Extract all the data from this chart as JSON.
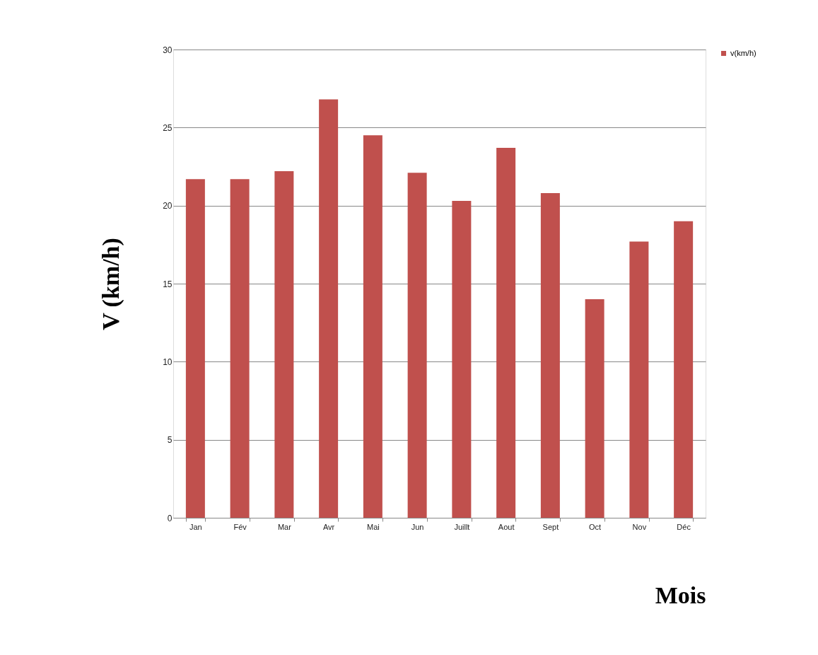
{
  "chart_data": {
    "type": "bar",
    "xlabel": "Mois",
    "ylabel": "V (km/h)",
    "categories": [
      "Jan",
      "Fév",
      "Mar",
      "Avr",
      "Mai",
      "Jun",
      "Juillt",
      "Aout",
      "Sept",
      "Oct",
      "Nov",
      "Déc"
    ],
    "series": [
      {
        "name": "v(km/h)",
        "color": "#c0504d",
        "values": [
          21.7,
          21.7,
          22.2,
          26.8,
          24.5,
          22.1,
          20.3,
          23.7,
          20.8,
          14.0,
          17.7,
          19.0
        ]
      }
    ],
    "ylim": [
      0,
      30
    ],
    "yticks": [
      0,
      5,
      10,
      15,
      20,
      25,
      30
    ],
    "grid": "y",
    "legend": "right"
  }
}
